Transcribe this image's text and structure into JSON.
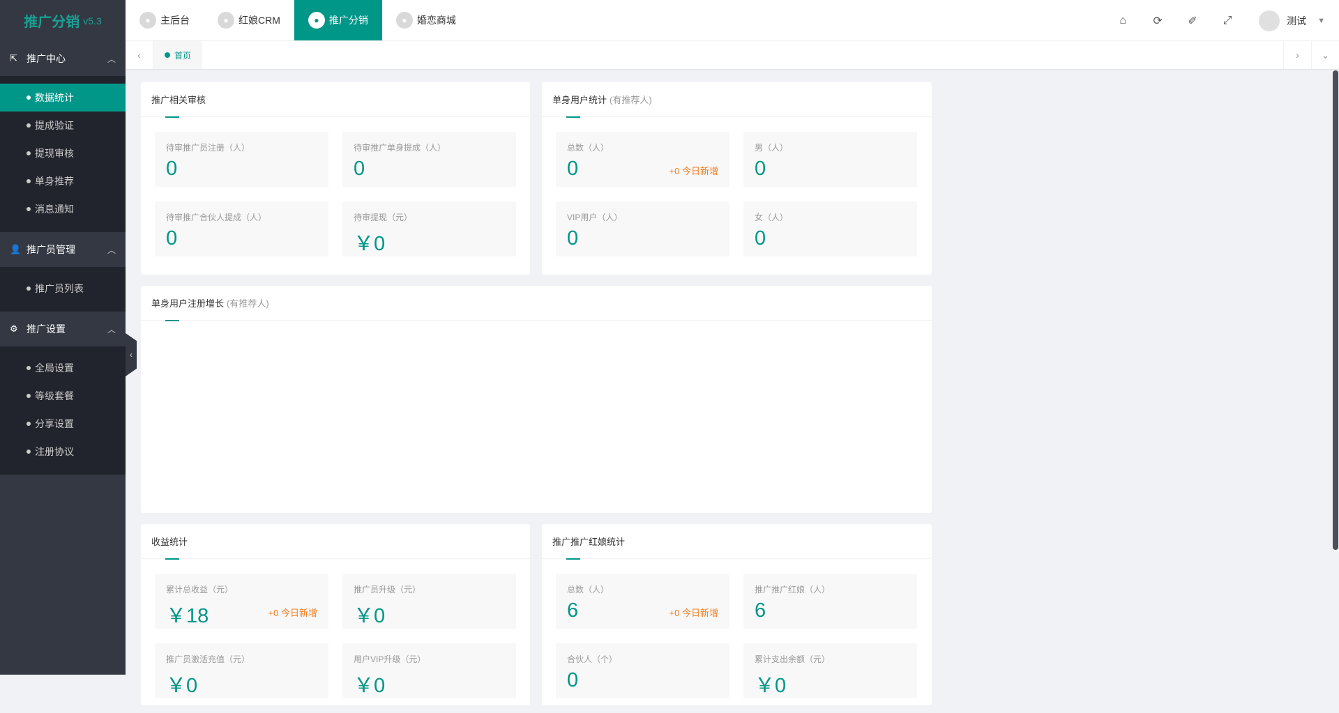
{
  "logo": {
    "title": "推广分销",
    "version": "v5.3"
  },
  "sidebar": {
    "groups": [
      {
        "label": "推广中心",
        "icon": "share-icon",
        "items": [
          "数据统计",
          "提成验证",
          "提现审核",
          "单身推荐",
          "消息通知"
        ]
      },
      {
        "label": "推广员管理",
        "icon": "user-icon",
        "items": [
          "推广员列表"
        ]
      },
      {
        "label": "推广设置",
        "icon": "gear-icon",
        "items": [
          "全局设置",
          "等级套餐",
          "分享设置",
          "注册协议"
        ]
      }
    ],
    "active": "数据统计"
  },
  "topnav": {
    "tabs": [
      "主后台",
      "红娘CRM",
      "推广分销",
      "婚恋商城"
    ],
    "active": "推广分销",
    "user": "测试"
  },
  "tabbar": {
    "home": "首页"
  },
  "accent": "#009688",
  "cards": [
    {
      "title": "推广相关审核",
      "subtitle": "",
      "stats": [
        {
          "label": "待审推广员注册（人）",
          "value": "0"
        },
        {
          "label": "待审推广单身提成（人）",
          "value": "0"
        },
        {
          "label": "待审推广合伙人提成（人）",
          "value": "0"
        },
        {
          "label": "待审提现（元）",
          "value": "￥0"
        }
      ]
    },
    {
      "title": "单身用户统计",
      "subtitle": "(有推荐人)",
      "stats": [
        {
          "label": "总数（人）",
          "value": "0",
          "inc": "+0 今日新增"
        },
        {
          "label": "男（人）",
          "value": "0"
        },
        {
          "label": "VIP用户（人）",
          "value": "0"
        },
        {
          "label": "女（人）",
          "value": "0"
        }
      ]
    },
    {
      "title": "单身用户注册增长",
      "subtitle": "(有推荐人)"
    },
    {
      "title": "收益统计",
      "subtitle": "",
      "stats": [
        {
          "label": "累计总收益（元）",
          "value": "￥18",
          "inc": "+0 今日新增"
        },
        {
          "label": "推广员升级（元）",
          "value": "￥0"
        },
        {
          "label": "推广员激活充值（元）",
          "value": "￥0"
        },
        {
          "label": "用户VIP升级（元）",
          "value": "￥0"
        }
      ]
    },
    {
      "title": "推广推广红娘统计",
      "subtitle": "",
      "stats": [
        {
          "label": "总数（人）",
          "value": "6",
          "inc": "+0 今日新增"
        },
        {
          "label": "推广推广红娘（人）",
          "value": "6"
        },
        {
          "label": "合伙人（个）",
          "value": "0"
        },
        {
          "label": "累计支出余额（元）",
          "value": "￥0"
        }
      ]
    }
  ]
}
